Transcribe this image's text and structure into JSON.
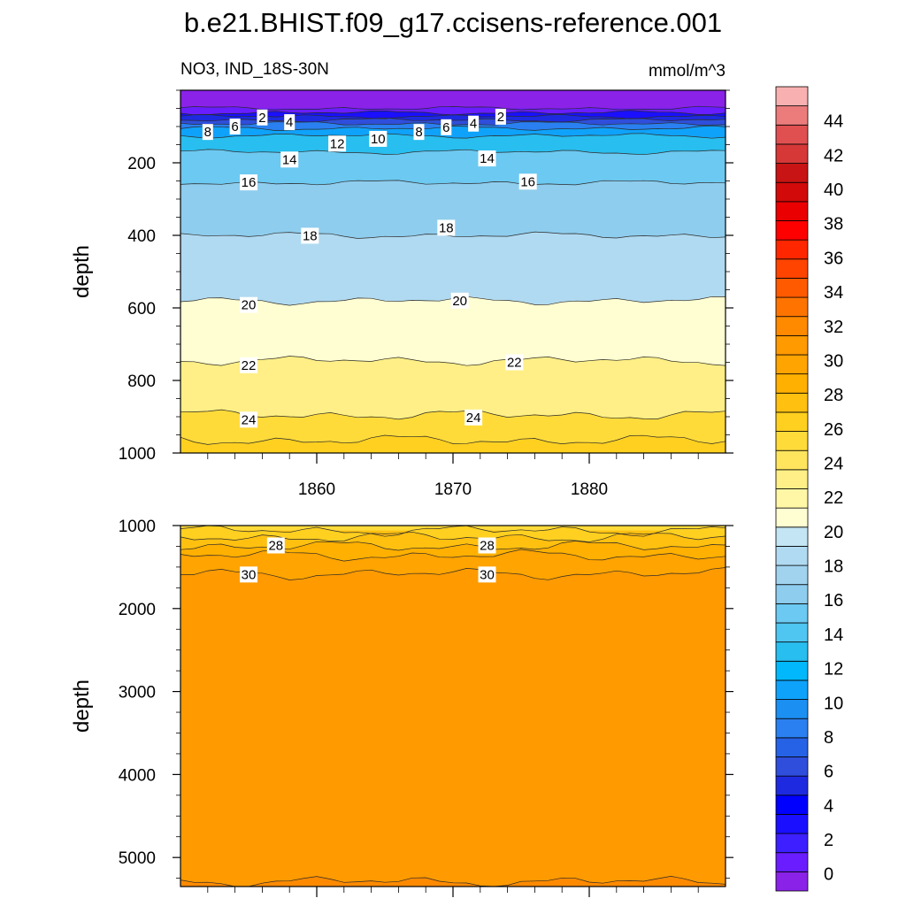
{
  "chart_data": [
    {
      "type": "contour",
      "panel": "upper",
      "title": "b.e21.BHIST.f09_g17.ccisens-reference.001",
      "left_subtitle": "NO3, IND_18S-30N",
      "right_subtitle": "mmol/m^3",
      "xlabel": "",
      "ylabel": "depth",
      "xlim": [
        1850,
        1890
      ],
      "ylim": [
        1000,
        0
      ],
      "xticks": [
        1860,
        1870,
        1880
      ],
      "xticklabels": [
        "1860",
        "1870",
        "1880"
      ],
      "yticks": [
        200,
        400,
        600,
        800,
        1000
      ],
      "yticklabels": [
        "200",
        "400",
        "600",
        "800",
        "1000"
      ],
      "contour_depths": [
        {
          "level": 0,
          "depth": 50
        },
        {
          "level": 2,
          "depth": 62
        },
        {
          "level": 4,
          "depth": 72
        },
        {
          "level": 6,
          "depth": 82
        },
        {
          "level": 8,
          "depth": 92
        },
        {
          "level": 10,
          "depth": 105
        },
        {
          "level": 12,
          "depth": 125
        },
        {
          "level": 14,
          "depth": 170
        },
        {
          "level": 16,
          "depth": 255
        },
        {
          "level": 18,
          "depth": 400
        },
        {
          "level": 20,
          "depth": 580
        },
        {
          "level": 22,
          "depth": 745
        },
        {
          "level": 24,
          "depth": 895
        },
        {
          "level": 25,
          "depth": 965
        }
      ],
      "contour_labels": [
        {
          "text": "2",
          "x": 1856.0,
          "y": 75
        },
        {
          "text": "4",
          "x": 1858.0,
          "y": 88
        },
        {
          "text": "6",
          "x": 1854.0,
          "y": 100
        },
        {
          "text": "8",
          "x": 1852.0,
          "y": 115
        },
        {
          "text": "12",
          "x": 1861.5,
          "y": 147
        },
        {
          "text": "10",
          "x": 1864.5,
          "y": 134
        },
        {
          "text": "8",
          "x": 1867.5,
          "y": 115
        },
        {
          "text": "6",
          "x": 1869.5,
          "y": 102
        },
        {
          "text": "4",
          "x": 1871.5,
          "y": 92
        },
        {
          "text": "2",
          "x": 1873.5,
          "y": 73
        },
        {
          "text": "14",
          "x": 1858.0,
          "y": 191
        },
        {
          "text": "14",
          "x": 1872.5,
          "y": 188
        },
        {
          "text": "16",
          "x": 1855.0,
          "y": 254
        },
        {
          "text": "16",
          "x": 1875.5,
          "y": 252
        },
        {
          "text": "18",
          "x": 1859.5,
          "y": 401
        },
        {
          "text": "18",
          "x": 1869.5,
          "y": 379
        },
        {
          "text": "20",
          "x": 1855.0,
          "y": 592
        },
        {
          "text": "20",
          "x": 1870.5,
          "y": 580
        },
        {
          "text": "22",
          "x": 1855.0,
          "y": 758
        },
        {
          "text": "22",
          "x": 1874.5,
          "y": 750
        },
        {
          "text": "24",
          "x": 1855.0,
          "y": 908
        },
        {
          "text": "24",
          "x": 1871.5,
          "y": 902
        }
      ]
    },
    {
      "type": "contour",
      "panel": "lower",
      "ylabel": "depth",
      "xlim": [
        1850,
        1890
      ],
      "ylim": [
        5350,
        1000
      ],
      "yticks": [
        1000,
        2000,
        3000,
        4000,
        5000
      ],
      "yticklabels": [
        "1000",
        "2000",
        "3000",
        "4000",
        "5000"
      ],
      "contour_depths": [
        {
          "level": 26,
          "depth": 1060
        },
        {
          "level": 27,
          "depth": 1140
        },
        {
          "level": 28,
          "depth": 1250
        },
        {
          "level": 29,
          "depth": 1360
        },
        {
          "level": 30,
          "depth": 1580
        },
        {
          "level": 31,
          "depth": 5290
        }
      ],
      "contour_labels": [
        {
          "text": "28",
          "x": 1857.0,
          "y": 1240
        },
        {
          "text": "28",
          "x": 1872.5,
          "y": 1240
        },
        {
          "text": "30",
          "x": 1855.0,
          "y": 1590
        },
        {
          "text": "30",
          "x": 1872.5,
          "y": 1590
        }
      ]
    },
    {
      "type": "colorbar",
      "min": -1,
      "max": 46,
      "step": 2,
      "tick_values": [
        0,
        2,
        4,
        6,
        8,
        10,
        12,
        14,
        16,
        18,
        20,
        22,
        24,
        26,
        28,
        30,
        32,
        34,
        36,
        38,
        40,
        42,
        44
      ],
      "colors": [
        "#8a22e8",
        "#6a1eff",
        "#3d1fff",
        "#1a10ff",
        "#0000ff",
        "#1e2ae0",
        "#2f4edc",
        "#2562e6",
        "#2a80f0",
        "#1b8ff2",
        "#0fa2fa",
        "#00b8fb",
        "#28beef",
        "#4ec6f1",
        "#6cc9f1",
        "#8ecdee",
        "#a1d3ef",
        "#b0daf1",
        "#c3e5f4",
        "#fffed2",
        "#fff7a6",
        "#ffef86",
        "#ffe55e",
        "#ffdb3a",
        "#ffd020",
        "#ffc010",
        "#ffb000",
        "#ffa400",
        "#ff9a00",
        "#ff8a00",
        "#ff7400",
        "#ff5a00",
        "#ff4400",
        "#ff2600",
        "#ff0000",
        "#ea0000",
        "#d20a0a",
        "#c81414",
        "#d63838",
        "#e05050",
        "#ec7c7c",
        "#f8b0b0"
      ]
    }
  ]
}
